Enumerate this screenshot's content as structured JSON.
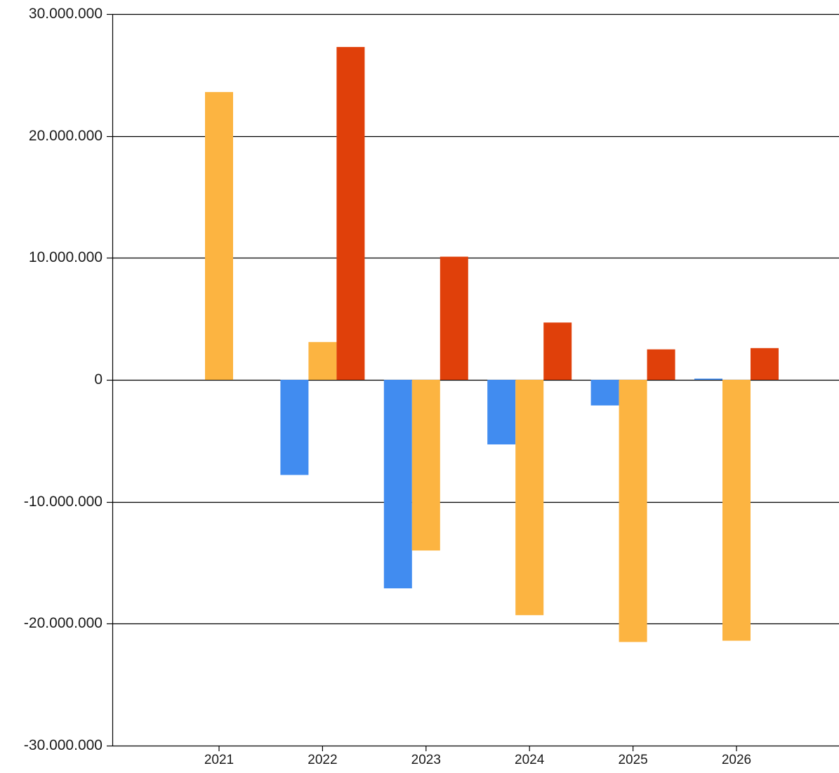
{
  "chart_data": {
    "type": "bar",
    "categories": [
      "2021",
      "2022",
      "2023",
      "2024",
      "2025",
      "2026"
    ],
    "series": [
      {
        "color": "#418CF0",
        "values": [
          0,
          -7800000,
          -17100000,
          -5300000,
          -2100000,
          100000
        ]
      },
      {
        "color": "#FCB441",
        "values": [
          23600000,
          3100000,
          -14000000,
          -19300000,
          -21500000,
          -21400000
        ]
      },
      {
        "color": "#E0400A",
        "values": [
          0,
          27300000,
          10100000,
          4700000,
          2500000,
          2600000
        ]
      }
    ],
    "ylim": [
      -30000000,
      30000000
    ],
    "y_ticks": [
      30000000,
      20000000,
      10000000,
      0,
      -10000000,
      -20000000,
      -30000000
    ],
    "y_tick_labels": [
      "30.000.000",
      "20.000.000",
      "10.000.000",
      "0",
      "-10.000.000",
      "-20.000.000",
      "-30.000.000"
    ],
    "grid": "horizontal",
    "legend": "none"
  }
}
